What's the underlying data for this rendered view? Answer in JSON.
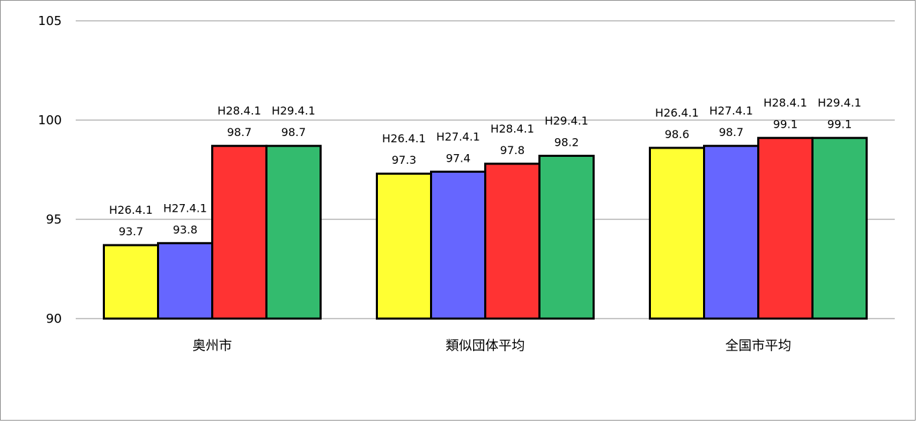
{
  "chart_data": {
    "type": "bar",
    "title": "",
    "xlabel": "",
    "ylabel": "",
    "ylim": [
      90,
      105
    ],
    "yticks": [
      90,
      95,
      100,
      105
    ],
    "grid": true,
    "categories": [
      "奥州市",
      "類似団体平均",
      "全国市平均"
    ],
    "series": [
      {
        "name": "H26.4.1",
        "color": "#ffff33",
        "values": [
          93.7,
          97.3,
          98.6
        ]
      },
      {
        "name": "H27.4.1",
        "color": "#6666ff",
        "values": [
          93.8,
          97.4,
          98.7
        ]
      },
      {
        "name": "H28.4.1",
        "color": "#ff3333",
        "values": [
          98.7,
          97.8,
          99.1
        ]
      },
      {
        "name": "H29.4.1",
        "color": "#33bb6e",
        "values": [
          98.7,
          98.2,
          99.1
        ]
      }
    ]
  }
}
